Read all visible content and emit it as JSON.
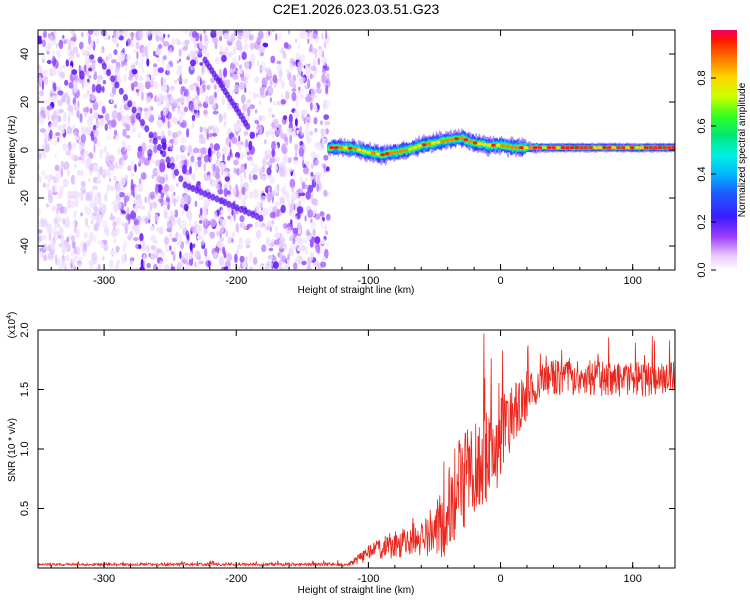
{
  "title": "C2E1.2026.023.03.51.G23",
  "chart_data": [
    {
      "type": "heatmap",
      "name": "spectrogram",
      "xlabel": "Height of straight line (km)",
      "ylabel": "Frequency (Hz)",
      "xlim": [
        -350,
        132
      ],
      "ylim": [
        -50,
        50
      ],
      "xticks": [
        -300,
        -200,
        -100,
        0,
        100
      ],
      "yticks": [
        -40,
        -20,
        0,
        20,
        40
      ],
      "noise_region_x": [
        -350,
        -130
      ],
      "signal_track": {
        "x": [
          -130,
          -120,
          -110,
          -100,
          -90,
          -80,
          -70,
          -60,
          -50,
          -40,
          -30,
          -20,
          -10,
          0,
          10,
          20,
          40,
          60,
          80,
          100,
          120,
          132
        ],
        "freq": [
          1,
          1,
          0.5,
          -1,
          -2,
          -1,
          0,
          2,
          3,
          4,
          5,
          3,
          2,
          2,
          1,
          1,
          1,
          1,
          1,
          1,
          1,
          1
        ]
      },
      "colorbar": {
        "label": "Normalized spectral amplitude",
        "range": [
          0,
          1
        ],
        "ticks": [
          0.0,
          0.2,
          0.4,
          0.6,
          0.8
        ]
      }
    },
    {
      "type": "line",
      "name": "snr",
      "xlabel": "Height of straight line (km)",
      "ylabel": "SNR (10 * v/v)",
      "scale_label": "(x10",
      "scale_exponent": "4",
      "xlim": [
        -350,
        132
      ],
      "ylim": [
        0,
        2.0
      ],
      "xticks": [
        -300,
        -200,
        -100,
        0,
        100
      ],
      "yticks": [
        0.5,
        1.0,
        1.5,
        2.0
      ],
      "ytick_labels": [
        "0.5",
        "1.0",
        "1.5",
        "2.0"
      ],
      "color": "#e8281e",
      "envelope": {
        "x": [
          -350,
          -115,
          -100,
          -80,
          -60,
          -45,
          -35,
          -25,
          -15,
          -5,
          5,
          15,
          25,
          35,
          60,
          100,
          132
        ],
        "mean": [
          0.03,
          0.03,
          0.12,
          0.2,
          0.25,
          0.35,
          0.6,
          0.75,
          0.9,
          1.0,
          1.2,
          1.35,
          1.5,
          1.6,
          1.6,
          1.58,
          1.6
        ],
        "noise": [
          0.01,
          0.015,
          0.08,
          0.12,
          0.15,
          0.3,
          0.4,
          0.45,
          0.45,
          0.4,
          0.3,
          0.25,
          0.15,
          0.15,
          0.15,
          0.15,
          0.15
        ]
      }
    }
  ]
}
